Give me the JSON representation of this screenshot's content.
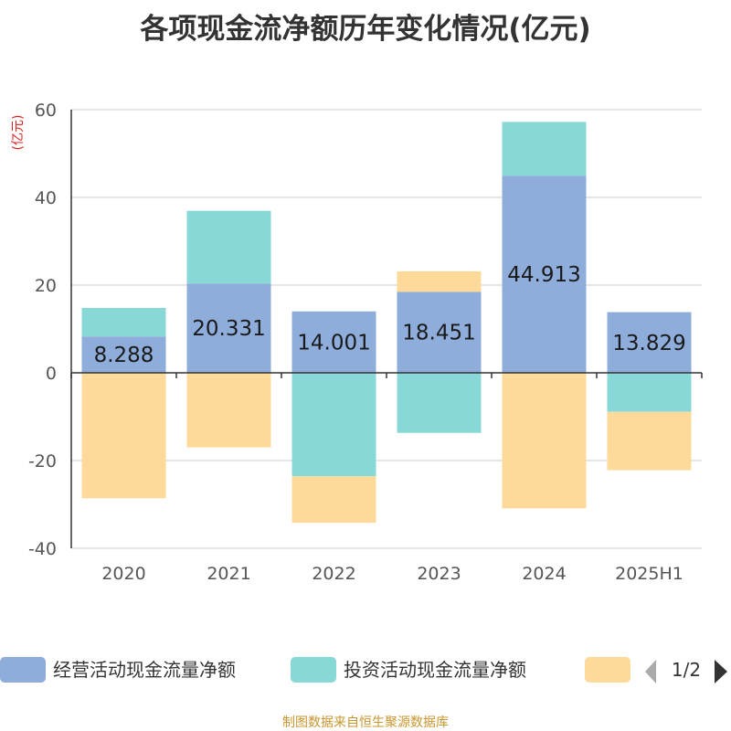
{
  "chart_data": {
    "type": "bar",
    "stacked": true,
    "title": "各项现金流净额历年变化情况(亿元)",
    "ylabel": "(亿元)",
    "xlabel": "",
    "ylim": [
      -40,
      60
    ],
    "yticks": [
      -40,
      -20,
      0,
      20,
      40,
      60
    ],
    "grid": true,
    "categories": [
      "2020",
      "2021",
      "2022",
      "2023",
      "2024",
      "2025H1"
    ],
    "series": [
      {
        "name": "经营活动现金流量净额",
        "color": "#8eaddb",
        "values": [
          8.288,
          20.331,
          14.001,
          18.451,
          44.913,
          13.829
        ],
        "show_labels": true
      },
      {
        "name": "投资活动现金流量净额",
        "color": "#88d8d8",
        "values": [
          6.5,
          16.6,
          -23.6,
          -13.7,
          12.3,
          -8.9
        ]
      },
      {
        "name": "",
        "color": "#fdd99a",
        "values": [
          -28.6,
          -17.0,
          -10.6,
          4.7,
          -30.9,
          -13.3
        ]
      }
    ],
    "legend": {
      "position": "bottom",
      "page": "1/2"
    }
  },
  "footer": {
    "source": "制图数据来自恒生聚源数据库"
  }
}
